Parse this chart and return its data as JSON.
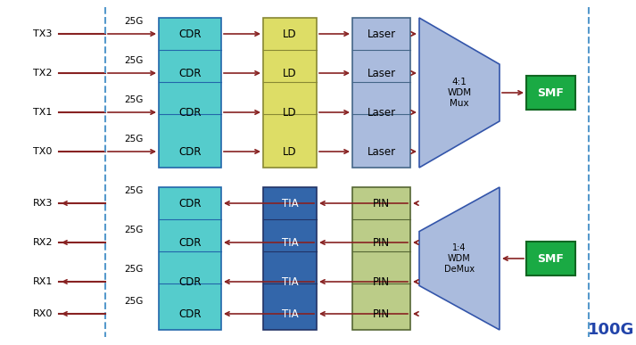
{
  "fig_width": 7.13,
  "fig_height": 3.87,
  "dpi": 100,
  "background_color": "#ffffff",
  "tx_labels": [
    "TX3",
    "TX2",
    "TX1",
    "TX0"
  ],
  "rx_labels": [
    "RX3",
    "RX2",
    "RX1",
    "RX0"
  ],
  "smf_color": "#1aaa44",
  "smf_text_color": "#ffffff",
  "cdr_color": "#55cccc",
  "cdr_edge": "#2266aa",
  "ld_color": "#dddd66",
  "ld_edge": "#888833",
  "laser_color": "#aabbdd",
  "laser_edge": "#446688",
  "tia_color": "#3366aa",
  "tia_edge": "#223366",
  "pin_color": "#bbcc88",
  "pin_edge": "#556633",
  "mux_color": "#aabbdd",
  "mux_edge": "#3355aa",
  "dashed_color": "#5599cc",
  "arrow_color": "#882222",
  "hundred_g_label": "100G",
  "mux_label": "4:1\nWDM\nMux",
  "demux_label": "1:4\nWDM\nDeMux",
  "xlim": [
    0,
    7.13
  ],
  "ylim": [
    0,
    3.87
  ]
}
